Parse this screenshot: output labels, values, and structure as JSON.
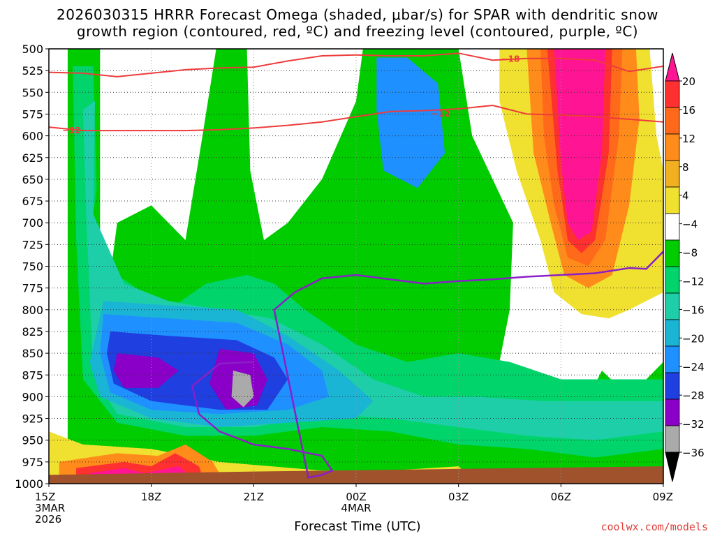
{
  "chart_data": {
    "type": "heatmap",
    "title_line1": "2026030315 HRRR Forecast Omega (shaded, μbar/s) for SPAR with dendritic snow",
    "title_line2": "growth region (contoured, red, ºC) and freezing level (contoured, purple, ºC)",
    "xlabel": "Forecast Time (UTC)",
    "ylabel": "",
    "x_ticks": [
      {
        "hour": 0,
        "label": "15Z",
        "sub": [
          "3MAR",
          "2026"
        ]
      },
      {
        "hour": 3,
        "label": "18Z",
        "sub": []
      },
      {
        "hour": 6,
        "label": "21Z",
        "sub": []
      },
      {
        "hour": 9,
        "label": "00Z",
        "sub": [
          "4MAR"
        ]
      },
      {
        "hour": 12,
        "label": "03Z",
        "sub": []
      },
      {
        "hour": 15,
        "label": "06Z",
        "sub": []
      },
      {
        "hour": 18,
        "label": "09Z",
        "sub": []
      }
    ],
    "xlim": [
      0,
      18
    ],
    "ylim": [
      500,
      1000
    ],
    "y_ticks": [
      500,
      525,
      550,
      575,
      600,
      625,
      650,
      675,
      700,
      725,
      750,
      775,
      800,
      825,
      850,
      875,
      900,
      925,
      950,
      975,
      1000
    ],
    "colorbar": {
      "labels": [
        "20",
        "16",
        "12",
        "8",
        "4",
        "−4",
        "−8",
        "−12",
        "−16",
        "−20",
        "−24",
        "−28",
        "−32",
        "−36"
      ],
      "colors": [
        "#ff1493",
        "#ff3030",
        "#ff6a1a",
        "#ff8c1a",
        "#f0b020",
        "#f0e030",
        "#ffffff",
        "#00cc00",
        "#00d46a",
        "#1ecea8",
        "#1ab4d4",
        "#1e90ff",
        "#1f3fe0",
        "#8a00c8",
        "#aaaaaa",
        "#000000"
      ]
    },
    "dgz_contours": [
      {
        "label": "−18",
        "points": [
          [
            0,
            527
          ],
          [
            1,
            528
          ],
          [
            2,
            532
          ],
          [
            3,
            528
          ],
          [
            4,
            524
          ],
          [
            5,
            522
          ],
          [
            6,
            521
          ],
          [
            7,
            514
          ],
          [
            8,
            508
          ],
          [
            9,
            507
          ],
          [
            10,
            508
          ],
          [
            11,
            508
          ],
          [
            12,
            505
          ],
          [
            13,
            513
          ],
          [
            14,
            511
          ],
          [
            15,
            511
          ],
          [
            16,
            513
          ],
          [
            17,
            526
          ],
          [
            18,
            520
          ]
        ]
      },
      {
        "label": "−12",
        "points": [
          [
            0,
            590
          ],
          [
            1,
            594
          ],
          [
            2,
            594
          ],
          [
            3,
            594
          ],
          [
            4,
            594
          ],
          [
            5,
            593
          ],
          [
            6,
            591
          ],
          [
            7,
            588
          ],
          [
            8,
            584
          ],
          [
            9,
            578
          ],
          [
            10,
            572
          ],
          [
            11,
            571
          ],
          [
            12,
            569
          ],
          [
            13,
            565
          ],
          [
            14,
            575
          ],
          [
            15,
            576
          ],
          [
            16,
            578
          ],
          [
            17,
            581
          ],
          [
            18,
            584
          ]
        ]
      }
    ],
    "freezing_level": {
      "points": [
        [
          6.0,
          860
        ],
        [
          5.0,
          862
        ],
        [
          4.2,
          888
        ],
        [
          4.4,
          920
        ],
        [
          5.0,
          940
        ],
        [
          6.0,
          955
        ],
        [
          7.0,
          960
        ],
        [
          8.0,
          968
        ],
        [
          8.3,
          985
        ],
        [
          8.0,
          990
        ],
        [
          7.6,
          993
        ],
        [
          6.6,
          800
        ],
        [
          7.2,
          780
        ],
        [
          8.0,
          764
        ],
        [
          9.0,
          760
        ],
        [
          10.0,
          765
        ],
        [
          11.0,
          770
        ],
        [
          12.0,
          767
        ],
        [
          13.0,
          765
        ],
        [
          14.0,
          762
        ],
        [
          15.0,
          760
        ],
        [
          16.0,
          758
        ],
        [
          17.0,
          752
        ],
        [
          17.5,
          753
        ],
        [
          18.0,
          733
        ]
      ]
    },
    "omega_regions": [
      {
        "level": "#00cc00",
        "points": [
          [
            0.55,
            500
          ],
          [
            1.5,
            500
          ],
          [
            1.5,
            720
          ],
          [
            1.8,
            760
          ],
          [
            2.0,
            700
          ],
          [
            3.0,
            680
          ],
          [
            4.0,
            720
          ],
          [
            4.5,
            600
          ],
          [
            4.9,
            500
          ],
          [
            5.8,
            500
          ],
          [
            5.9,
            640
          ],
          [
            6.3,
            720
          ],
          [
            7.0,
            700
          ],
          [
            8.0,
            650
          ],
          [
            9.0,
            560
          ],
          [
            9.2,
            500
          ],
          [
            11.0,
            500
          ],
          [
            12.0,
            500
          ],
          [
            12.4,
            600
          ],
          [
            13.0,
            650
          ],
          [
            13.6,
            700
          ],
          [
            13.5,
            800
          ],
          [
            13.2,
            860
          ],
          [
            13.9,
            930
          ],
          [
            15.0,
            965
          ],
          [
            16.2,
            870
          ],
          [
            17.0,
            900
          ],
          [
            18.0,
            860
          ],
          [
            18.0,
            990
          ],
          [
            0.55,
            990
          ]
        ]
      },
      {
        "level": "#00d46a",
        "points": [
          [
            0.7,
            520
          ],
          [
            1.3,
            520
          ],
          [
            1.4,
            660
          ],
          [
            1.2,
            720
          ],
          [
            2.0,
            760
          ],
          [
            3.5,
            800
          ],
          [
            4.6,
            770
          ],
          [
            5.8,
            760
          ],
          [
            6.6,
            770
          ],
          [
            7.5,
            800
          ],
          [
            9.0,
            840
          ],
          [
            10.5,
            860
          ],
          [
            12.0,
            850
          ],
          [
            13.5,
            860
          ],
          [
            15.0,
            880
          ],
          [
            16.5,
            880
          ],
          [
            18.0,
            880
          ],
          [
            18.0,
            960
          ],
          [
            16.0,
            970
          ],
          [
            14.0,
            960
          ],
          [
            12.0,
            955
          ],
          [
            10.0,
            940
          ],
          [
            8.0,
            935
          ],
          [
            6.0,
            945
          ],
          [
            4.0,
            945
          ],
          [
            2.0,
            930
          ],
          [
            1.0,
            880
          ],
          [
            0.8,
            720
          ]
        ]
      },
      {
        "level": "#1ecea8",
        "points": [
          [
            1.0,
            570
          ],
          [
            1.35,
            560
          ],
          [
            1.3,
            690
          ],
          [
            2.2,
            770
          ],
          [
            3.5,
            790
          ],
          [
            5.0,
            800
          ],
          [
            6.5,
            810
          ],
          [
            8.0,
            840
          ],
          [
            9.5,
            880
          ],
          [
            11.0,
            900
          ],
          [
            12.5,
            900
          ],
          [
            14.5,
            905
          ],
          [
            16.5,
            905
          ],
          [
            18.0,
            905
          ],
          [
            18.0,
            940
          ],
          [
            16.0,
            950
          ],
          [
            14.0,
            945
          ],
          [
            12.0,
            935
          ],
          [
            10.0,
            925
          ],
          [
            8.0,
            920
          ],
          [
            6.0,
            935
          ],
          [
            4.0,
            935
          ],
          [
            2.0,
            920
          ],
          [
            1.3,
            875
          ],
          [
            1.1,
            700
          ]
        ]
      },
      {
        "level": "#1ab4d4",
        "points": [
          [
            1.6,
            790
          ],
          [
            3.5,
            795
          ],
          [
            5.5,
            800
          ],
          [
            7.0,
            830
          ],
          [
            8.5,
            870
          ],
          [
            9.5,
            905
          ],
          [
            9.0,
            925
          ],
          [
            7.0,
            930
          ],
          [
            5.0,
            935
          ],
          [
            3.0,
            925
          ],
          [
            1.5,
            900
          ],
          [
            1.2,
            860
          ]
        ]
      },
      {
        "level": "#1e90ff",
        "points": [
          [
            9.6,
            510
          ],
          [
            10.5,
            510
          ],
          [
            11.4,
            540
          ],
          [
            11.6,
            620
          ],
          [
            10.8,
            660
          ],
          [
            9.8,
            640
          ],
          [
            9.6,
            570
          ]
        ]
      },
      {
        "level": "#1e90ff",
        "points": [
          [
            1.6,
            805
          ],
          [
            3.5,
            810
          ],
          [
            5.5,
            815
          ],
          [
            7.0,
            840
          ],
          [
            8.0,
            870
          ],
          [
            8.2,
            900
          ],
          [
            7.0,
            915
          ],
          [
            5.0,
            920
          ],
          [
            3.0,
            915
          ],
          [
            1.8,
            895
          ],
          [
            1.5,
            850
          ]
        ]
      },
      {
        "level": "#1f3fe0",
        "points": [
          [
            1.8,
            825
          ],
          [
            3.5,
            830
          ],
          [
            5.5,
            835
          ],
          [
            6.6,
            855
          ],
          [
            7.0,
            880
          ],
          [
            6.4,
            915
          ],
          [
            5.0,
            915
          ],
          [
            3.0,
            905
          ],
          [
            1.9,
            885
          ],
          [
            1.7,
            850
          ]
        ]
      },
      {
        "level": "#8a00c8",
        "points": [
          [
            2.0,
            850
          ],
          [
            3.2,
            855
          ],
          [
            3.8,
            870
          ],
          [
            3.2,
            890
          ],
          [
            2.2,
            890
          ],
          [
            1.9,
            870
          ]
        ]
      },
      {
        "level": "#8a00c8",
        "points": [
          [
            5.0,
            845
          ],
          [
            6.0,
            850
          ],
          [
            6.4,
            880
          ],
          [
            6.1,
            910
          ],
          [
            5.2,
            915
          ],
          [
            4.7,
            885
          ]
        ]
      },
      {
        "level": "#aaaaaa",
        "points": [
          [
            5.4,
            870
          ],
          [
            5.9,
            875
          ],
          [
            6.0,
            900
          ],
          [
            5.7,
            912
          ],
          [
            5.35,
            900
          ]
        ]
      },
      {
        "level": "#f0e030",
        "points": [
          [
            13.2,
            500
          ],
          [
            17.6,
            500
          ],
          [
            17.8,
            600
          ],
          [
            18.0,
            640
          ],
          [
            18.0,
            780
          ],
          [
            17.0,
            800
          ],
          [
            16.4,
            810
          ],
          [
            15.6,
            805
          ],
          [
            14.8,
            780
          ],
          [
            14.4,
            720
          ],
          [
            13.7,
            640
          ],
          [
            13.2,
            560
          ]
        ]
      },
      {
        "level": "#ff8c1a",
        "points": [
          [
            14.0,
            500
          ],
          [
            17.2,
            500
          ],
          [
            17.3,
            580
          ],
          [
            17.0,
            680
          ],
          [
            16.5,
            760
          ],
          [
            15.8,
            775
          ],
          [
            15.1,
            760
          ],
          [
            14.7,
            700
          ],
          [
            14.2,
            620
          ]
        ]
      },
      {
        "level": "#ff6a1a",
        "points": [
          [
            14.4,
            500
          ],
          [
            16.8,
            500
          ],
          [
            16.7,
            600
          ],
          [
            16.3,
            720
          ],
          [
            15.8,
            750
          ],
          [
            15.2,
            740
          ],
          [
            14.8,
            680
          ],
          [
            14.5,
            600
          ]
        ]
      },
      {
        "level": "#ff3030",
        "points": [
          [
            14.6,
            500
          ],
          [
            16.5,
            500
          ],
          [
            16.4,
            620
          ],
          [
            16.0,
            720
          ],
          [
            15.6,
            735
          ],
          [
            15.2,
            720
          ],
          [
            14.9,
            640
          ]
        ]
      },
      {
        "level": "#ff1493",
        "points": [
          [
            14.8,
            500
          ],
          [
            16.3,
            500
          ],
          [
            16.2,
            620
          ],
          [
            15.9,
            710
          ],
          [
            15.5,
            720
          ],
          [
            15.2,
            700
          ],
          [
            15.0,
            630
          ]
        ]
      },
      {
        "level": "#f0e030",
        "points": [
          [
            0.0,
            940
          ],
          [
            1.0,
            955
          ],
          [
            3.0,
            960
          ],
          [
            5.0,
            975
          ],
          [
            8.0,
            985
          ],
          [
            10.0,
            985
          ],
          [
            12.0,
            980
          ],
          [
            12.4,
            994
          ],
          [
            0.0,
            1000
          ]
        ]
      },
      {
        "level": "#ff8c1a",
        "points": [
          [
            0.3,
            975
          ],
          [
            2.0,
            965
          ],
          [
            3.2,
            968
          ],
          [
            4.0,
            955
          ],
          [
            4.8,
            975
          ],
          [
            5.0,
            988
          ],
          [
            0.3,
            995
          ]
        ]
      },
      {
        "level": "#ff3030",
        "points": [
          [
            0.8,
            982
          ],
          [
            2.2,
            975
          ],
          [
            3.0,
            980
          ],
          [
            3.7,
            965
          ],
          [
            4.4,
            980
          ],
          [
            4.5,
            992
          ],
          [
            0.8,
            995
          ]
        ]
      },
      {
        "level": "#ff1493",
        "points": [
          [
            1.2,
            988
          ],
          [
            2.2,
            982
          ],
          [
            2.8,
            988
          ],
          [
            3.8,
            980
          ],
          [
            4.1,
            990
          ],
          [
            1.2,
            995
          ]
        ]
      }
    ],
    "ground": {
      "color": "#a0522d",
      "points": [
        [
          0,
          990
        ],
        [
          6,
          986
        ],
        [
          12,
          983
        ],
        [
          18,
          980
        ]
      ]
    }
  },
  "credit": "coolwx.com/models"
}
